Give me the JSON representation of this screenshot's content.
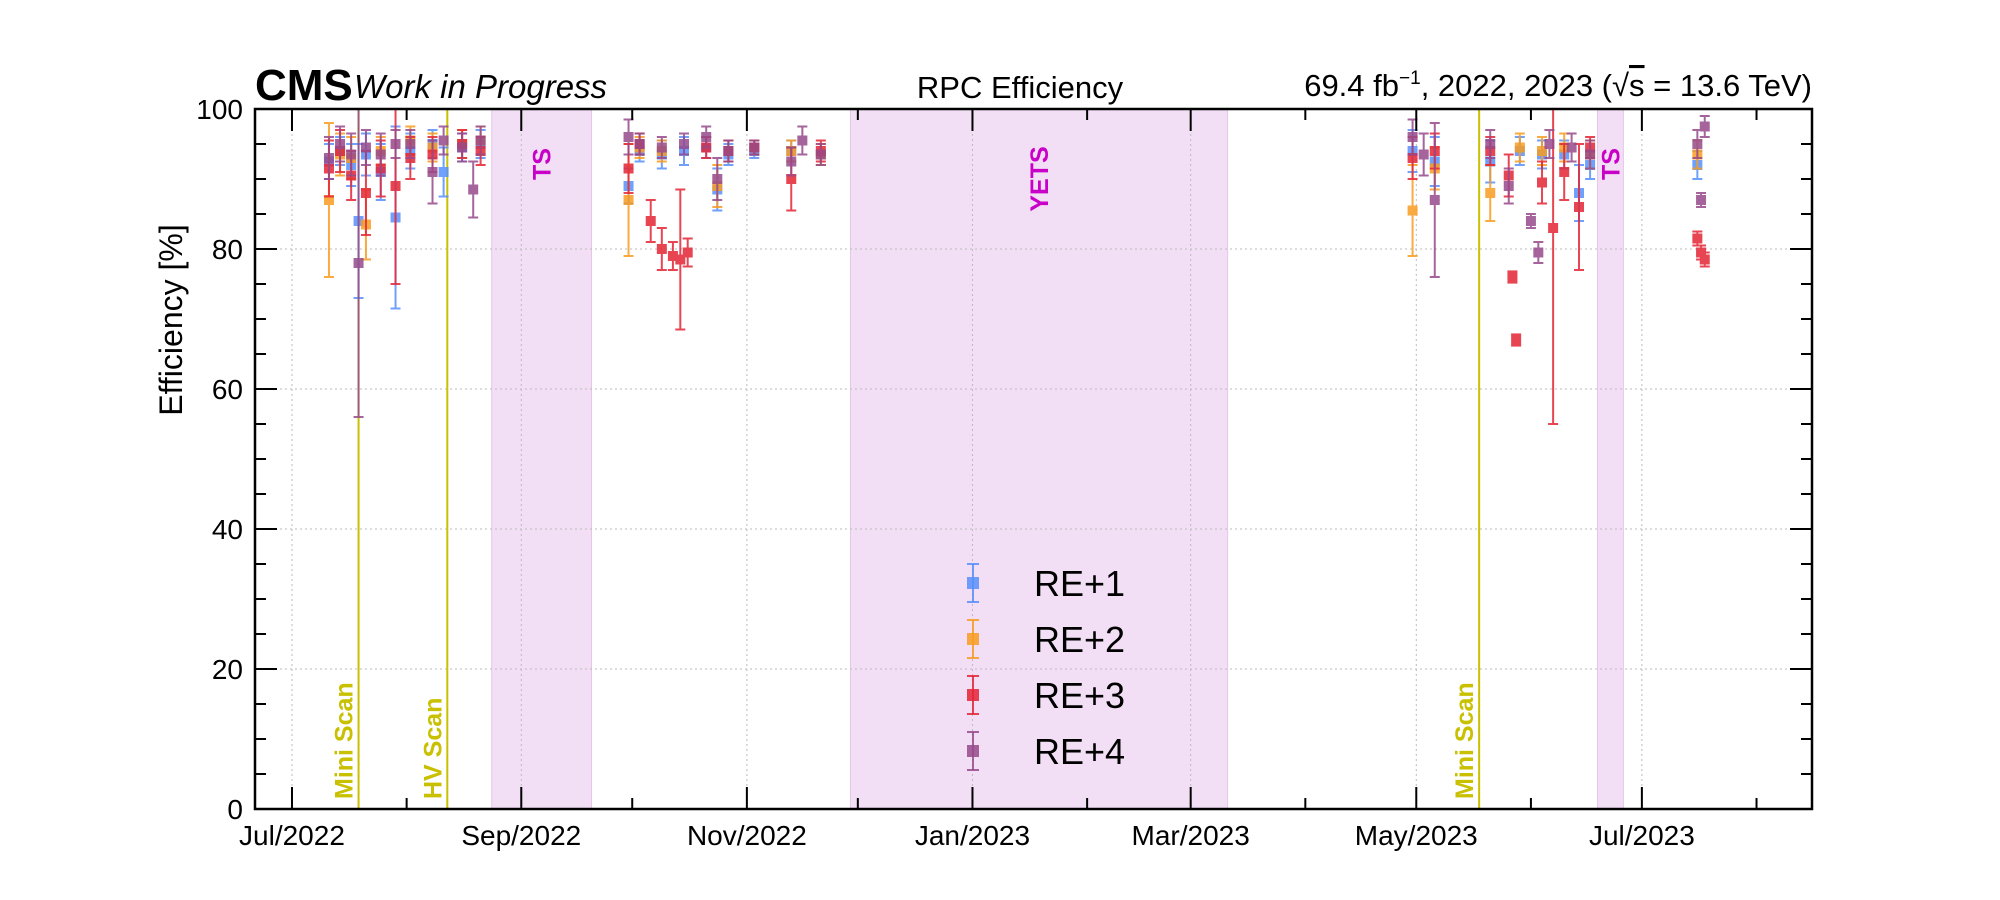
{
  "header": {
    "experiment": "CMS",
    "status": "Work in Progress",
    "title": "RPC Efficiency",
    "lumi_prefix": "69.4 fb",
    "lumi_exponent": "−1",
    "lumi_years": ", 2022, 2023 (",
    "sqrt_symbol": "√",
    "sqrt_arg": "s",
    "energy": " = 13.6 TeV)"
  },
  "colors": {
    "RE+1": "#5790fc",
    "RE+2": "#f89c20",
    "RE+3": "#e42536",
    "RE+4": "#964a8b",
    "band_fill": "#f3dff5",
    "band_label": "#c800c8",
    "scan_line": "#c8c000",
    "grid": "#bbbbbb"
  },
  "chart_data": {
    "type": "scatter",
    "title": "RPC Efficiency",
    "xlabel": "",
    "ylabel": "Efficiency [%]",
    "xlim": [
      "2022-06-21",
      "2023-08-16"
    ],
    "ylim": [
      0,
      100
    ],
    "yticks": [
      0,
      20,
      40,
      60,
      80,
      100
    ],
    "xticks": [
      {
        "date": "2022-07-01",
        "label": "Jul/2022"
      },
      {
        "date": "2022-09-01",
        "label": "Sep/2022"
      },
      {
        "date": "2022-11-01",
        "label": "Nov/2022"
      },
      {
        "date": "2023-01-01",
        "label": "Jan/2023"
      },
      {
        "date": "2023-03-01",
        "label": "Mar/2023"
      },
      {
        "date": "2023-05-01",
        "label": "May/2023"
      },
      {
        "date": "2023-07-01",
        "label": "Jul/2023"
      }
    ],
    "grid": true,
    "legend_position": "bottom-center",
    "bands": [
      {
        "label": "TS",
        "start": "2022-08-24",
        "end": "2022-09-20"
      },
      {
        "label": "YETS",
        "start": "2022-11-29",
        "end": "2023-03-11"
      },
      {
        "label": "TS",
        "start": "2023-06-19",
        "end": "2023-06-26"
      }
    ],
    "vlines": [
      {
        "label": "Mini Scan",
        "date": "2022-07-19"
      },
      {
        "label": "HV Scan",
        "date": "2022-08-12"
      },
      {
        "label": "Mini Scan",
        "date": "2023-05-18"
      }
    ],
    "series": [
      {
        "name": "RE+1",
        "points": [
          {
            "x": "2022-07-11",
            "y": 92.5,
            "err": 2.5
          },
          {
            "x": "2022-07-14",
            "y": 94.0,
            "err": 2.0
          },
          {
            "x": "2022-07-17",
            "y": 92.0,
            "err": 3.0
          },
          {
            "x": "2022-07-19",
            "y": 84.0,
            "err": 11.0
          },
          {
            "x": "2022-07-21",
            "y": 93.5,
            "err": 3.0
          },
          {
            "x": "2022-07-25",
            "y": 91.0,
            "err": 4.0
          },
          {
            "x": "2022-07-29",
            "y": 84.5,
            "err": 13.0
          },
          {
            "x": "2022-08-02",
            "y": 94.0,
            "err": 2.5
          },
          {
            "x": "2022-08-08",
            "y": 95.0,
            "err": 2.0
          },
          {
            "x": "2022-08-11",
            "y": 91.0,
            "err": 3.5
          },
          {
            "x": "2022-08-16",
            "y": 94.5,
            "err": 2.0
          },
          {
            "x": "2022-08-21",
            "y": 95.0,
            "err": 2.0
          },
          {
            "x": "2022-09-30",
            "y": 89.0,
            "err": 2.5
          },
          {
            "x": "2022-10-03",
            "y": 94.0,
            "err": 1.5
          },
          {
            "x": "2022-10-09",
            "y": 93.5,
            "err": 2.0
          },
          {
            "x": "2022-10-15",
            "y": 94.0,
            "err": 2.0
          },
          {
            "x": "2022-10-21",
            "y": 94.5,
            "err": 1.5
          },
          {
            "x": "2022-10-24",
            "y": 88.5,
            "err": 3.0
          },
          {
            "x": "2022-10-27",
            "y": 93.5,
            "err": 1.5
          },
          {
            "x": "2022-11-03",
            "y": 94.0,
            "err": 1.0
          },
          {
            "x": "2022-11-13",
            "y": 94.0,
            "err": 1.5
          },
          {
            "x": "2022-11-21",
            "y": 93.5,
            "err": 1.5
          },
          {
            "x": "2023-04-30",
            "y": 94.0,
            "err": 3.0
          },
          {
            "x": "2023-05-06",
            "y": 92.5,
            "err": 3.5
          },
          {
            "x": "2023-05-21",
            "y": 92.5,
            "err": 3.0
          },
          {
            "x": "2023-05-29",
            "y": 94.0,
            "err": 2.0
          },
          {
            "x": "2023-06-04",
            "y": 93.5,
            "err": 2.0
          },
          {
            "x": "2023-06-10",
            "y": 93.5,
            "err": 2.0
          },
          {
            "x": "2023-06-14",
            "y": 88.0,
            "err": 4.0
          },
          {
            "x": "2023-06-17",
            "y": 92.0,
            "err": 2.0
          },
          {
            "x": "2023-07-16",
            "y": 92.0,
            "err": 2.0
          }
        ]
      },
      {
        "name": "RE+2",
        "points": [
          {
            "x": "2022-07-11",
            "y": 87.0,
            "err": 11.0
          },
          {
            "x": "2022-07-14",
            "y": 93.5,
            "err": 3.0
          },
          {
            "x": "2022-07-17",
            "y": 93.0,
            "err": 3.0
          },
          {
            "x": "2022-07-21",
            "y": 83.5,
            "err": 5.0
          },
          {
            "x": "2022-07-25",
            "y": 94.0,
            "err": 2.0
          },
          {
            "x": "2022-08-02",
            "y": 95.5,
            "err": 2.0
          },
          {
            "x": "2022-08-08",
            "y": 94.5,
            "err": 2.0
          },
          {
            "x": "2022-08-16",
            "y": 95.0,
            "err": 2.0
          },
          {
            "x": "2022-08-21",
            "y": 95.5,
            "err": 2.0
          },
          {
            "x": "2022-09-30",
            "y": 87.0,
            "err": 8.0
          },
          {
            "x": "2022-10-03",
            "y": 94.5,
            "err": 1.5
          },
          {
            "x": "2022-10-09",
            "y": 94.0,
            "err": 1.5
          },
          {
            "x": "2022-10-24",
            "y": 89.0,
            "err": 3.0
          },
          {
            "x": "2022-10-27",
            "y": 94.0,
            "err": 1.5
          },
          {
            "x": "2022-11-03",
            "y": 94.5,
            "err": 1.0
          },
          {
            "x": "2022-11-13",
            "y": 94.0,
            "err": 1.5
          },
          {
            "x": "2022-11-21",
            "y": 93.5,
            "err": 1.5
          },
          {
            "x": "2023-04-30",
            "y": 85.5,
            "err": 6.5
          },
          {
            "x": "2023-05-06",
            "y": 91.5,
            "err": 3.0
          },
          {
            "x": "2023-05-21",
            "y": 88.0,
            "err": 4.0
          },
          {
            "x": "2023-05-29",
            "y": 94.5,
            "err": 2.0
          },
          {
            "x": "2023-06-04",
            "y": 94.0,
            "err": 2.0
          },
          {
            "x": "2023-06-10",
            "y": 94.5,
            "err": 2.0
          },
          {
            "x": "2023-06-17",
            "y": 93.5,
            "err": 2.0
          },
          {
            "x": "2023-07-16",
            "y": 93.5,
            "err": 2.0
          }
        ]
      },
      {
        "name": "RE+3",
        "points": [
          {
            "x": "2022-07-11",
            "y": 91.5,
            "err": 4.0
          },
          {
            "x": "2022-07-14",
            "y": 94.0,
            "err": 3.0
          },
          {
            "x": "2022-07-17",
            "y": 90.5,
            "err": 3.5
          },
          {
            "x": "2022-07-21",
            "y": 88.0,
            "err": 6.0
          },
          {
            "x": "2022-07-25",
            "y": 91.5,
            "err": 4.0
          },
          {
            "x": "2022-07-29",
            "y": 89.0,
            "err": 14.0
          },
          {
            "x": "2022-08-02",
            "y": 93.0,
            "err": 3.0
          },
          {
            "x": "2022-08-08",
            "y": 93.5,
            "err": 2.5
          },
          {
            "x": "2022-08-16",
            "y": 95.0,
            "err": 2.0
          },
          {
            "x": "2022-08-21",
            "y": 94.0,
            "err": 2.0
          },
          {
            "x": "2022-09-30",
            "y": 91.5,
            "err": 3.5
          },
          {
            "x": "2022-10-03",
            "y": 95.0,
            "err": 1.5
          },
          {
            "x": "2022-10-06",
            "y": 84.0,
            "err": 3.0
          },
          {
            "x": "2022-10-09",
            "y": 80.0,
            "err": 3.0
          },
          {
            "x": "2022-10-12",
            "y": 79.0,
            "err": 2.0
          },
          {
            "x": "2022-10-14",
            "y": 78.5,
            "err": 10.0
          },
          {
            "x": "2022-10-16",
            "y": 79.5,
            "err": 2.0
          },
          {
            "x": "2022-10-21",
            "y": 94.5,
            "err": 1.5
          },
          {
            "x": "2022-10-27",
            "y": 94.0,
            "err": 1.5
          },
          {
            "x": "2022-11-03",
            "y": 94.5,
            "err": 1.0
          },
          {
            "x": "2022-11-13",
            "y": 90.0,
            "err": 4.5
          },
          {
            "x": "2022-11-21",
            "y": 94.0,
            "err": 1.5
          },
          {
            "x": "2023-04-30",
            "y": 93.0,
            "err": 3.0
          },
          {
            "x": "2023-05-06",
            "y": 94.0,
            "err": 2.5
          },
          {
            "x": "2023-05-21",
            "y": 94.0,
            "err": 2.0
          },
          {
            "x": "2023-05-26",
            "y": 90.5,
            "err": 3.0
          },
          {
            "x": "2023-05-27",
            "y": 76.0,
            "err": 0.8
          },
          {
            "x": "2023-05-28",
            "y": 67.0,
            "err": 0.8
          },
          {
            "x": "2023-06-04",
            "y": 89.5,
            "err": 3.0
          },
          {
            "x": "2023-06-07",
            "y": 83.0,
            "err": 28.0
          },
          {
            "x": "2023-06-10",
            "y": 91.0,
            "err": 4.0
          },
          {
            "x": "2023-06-14",
            "y": 86.0,
            "err": 9.0
          },
          {
            "x": "2023-06-17",
            "y": 94.5,
            "err": 1.5
          },
          {
            "x": "2023-07-16",
            "y": 81.5,
            "err": 1.0
          },
          {
            "x": "2023-07-17",
            "y": 79.5,
            "err": 1.0
          },
          {
            "x": "2023-07-18",
            "y": 78.5,
            "err": 1.0
          }
        ]
      },
      {
        "name": "RE+4",
        "points": [
          {
            "x": "2022-07-11",
            "y": 93.0,
            "err": 3.0
          },
          {
            "x": "2022-07-14",
            "y": 95.0,
            "err": 2.5
          },
          {
            "x": "2022-07-17",
            "y": 93.5,
            "err": 3.0
          },
          {
            "x": "2022-07-19",
            "y": 78.0,
            "err": 22.0
          },
          {
            "x": "2022-07-21",
            "y": 94.5,
            "err": 2.5
          },
          {
            "x": "2022-07-25",
            "y": 93.5,
            "err": 3.0
          },
          {
            "x": "2022-07-29",
            "y": 95.0,
            "err": 2.0
          },
          {
            "x": "2022-08-02",
            "y": 95.0,
            "err": 2.0
          },
          {
            "x": "2022-08-08",
            "y": 91.0,
            "err": 4.5
          },
          {
            "x": "2022-08-11",
            "y": 95.5,
            "err": 2.0
          },
          {
            "x": "2022-08-16",
            "y": 94.5,
            "err": 2.0
          },
          {
            "x": "2022-08-19",
            "y": 88.5,
            "err": 4.0
          },
          {
            "x": "2022-08-21",
            "y": 95.5,
            "err": 2.0
          },
          {
            "x": "2022-09-30",
            "y": 96.0,
            "err": 2.5
          },
          {
            "x": "2022-10-03",
            "y": 95.0,
            "err": 1.5
          },
          {
            "x": "2022-10-09",
            "y": 94.5,
            "err": 1.5
          },
          {
            "x": "2022-10-15",
            "y": 95.0,
            "err": 1.5
          },
          {
            "x": "2022-10-21",
            "y": 96.0,
            "err": 1.5
          },
          {
            "x": "2022-10-24",
            "y": 90.0,
            "err": 3.0
          },
          {
            "x": "2022-10-27",
            "y": 94.0,
            "err": 1.5
          },
          {
            "x": "2022-11-03",
            "y": 94.5,
            "err": 1.0
          },
          {
            "x": "2022-11-13",
            "y": 92.5,
            "err": 2.0
          },
          {
            "x": "2022-11-16",
            "y": 95.5,
            "err": 2.0
          },
          {
            "x": "2022-11-21",
            "y": 93.5,
            "err": 1.5
          },
          {
            "x": "2023-04-30",
            "y": 96.0,
            "err": 2.5
          },
          {
            "x": "2023-05-03",
            "y": 93.5,
            "err": 3.0
          },
          {
            "x": "2023-05-06",
            "y": 87.0,
            "err": 11.0
          },
          {
            "x": "2023-05-21",
            "y": 95.0,
            "err": 2.0
          },
          {
            "x": "2023-05-26",
            "y": 89.0,
            "err": 2.5
          },
          {
            "x": "2023-06-01",
            "y": 84.0,
            "err": 1.0
          },
          {
            "x": "2023-06-03",
            "y": 79.5,
            "err": 1.5
          },
          {
            "x": "2023-06-06",
            "y": 95.0,
            "err": 2.0
          },
          {
            "x": "2023-06-12",
            "y": 94.5,
            "err": 2.0
          },
          {
            "x": "2023-06-17",
            "y": 93.5,
            "err": 2.0
          },
          {
            "x": "2023-07-16",
            "y": 95.0,
            "err": 2.0
          },
          {
            "x": "2023-07-17",
            "y": 87.0,
            "err": 1.0
          },
          {
            "x": "2023-07-18",
            "y": 97.5,
            "err": 1.5
          }
        ]
      }
    ]
  }
}
